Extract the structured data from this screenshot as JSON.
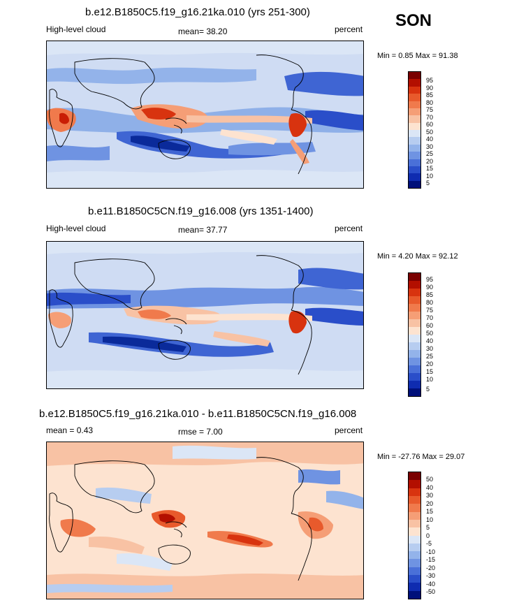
{
  "season": "SON",
  "panels": [
    {
      "title": "b.e12.B1850C5.f19_g16.21ka.010 (yrs 251-300)",
      "left_label": "High-level cloud",
      "center_label": "mean=  38.20",
      "right_label": "percent",
      "minmax": "Min =   0.85 Max =  91.38",
      "colorbar_labels": [
        "95",
        "90",
        "85",
        "80",
        "75",
        "70",
        "60",
        "50",
        "40",
        "30",
        "25",
        "20",
        "15",
        "10",
        "5"
      ],
      "colorbar_colors": [
        "#7a0000",
        "#b30f00",
        "#d8330f",
        "#e85a2c",
        "#f07a4c",
        "#f59e76",
        "#f8c2a4",
        "#fde3d0",
        "#dbe6f6",
        "#b7cdf0",
        "#93b3ea",
        "#6f93e2",
        "#4a70d8",
        "#2a4ec9",
        "#0f2cb0",
        "#00107a"
      ]
    },
    {
      "title": "b.e11.B1850C5CN.f19_g16.008 (yrs 1351-1400)",
      "left_label": "High-level cloud",
      "center_label": "mean=  37.77",
      "right_label": "percent",
      "minmax": "Min =   4.20 Max =  92.12",
      "colorbar_labels": [
        "95",
        "90",
        "85",
        "80",
        "75",
        "70",
        "60",
        "50",
        "40",
        "30",
        "25",
        "20",
        "15",
        "10",
        "5"
      ],
      "colorbar_colors": [
        "#7a0000",
        "#b30f00",
        "#d8330f",
        "#e85a2c",
        "#f07a4c",
        "#f59e76",
        "#f8c2a4",
        "#fde3d0",
        "#dbe6f6",
        "#b7cdf0",
        "#93b3ea",
        "#6f93e2",
        "#4a70d8",
        "#2a4ec9",
        "#0f2cb0",
        "#00107a"
      ]
    },
    {
      "title": "b.e12.B1850C5.f19_g16.21ka.010 - b.e11.B1850C5CN.f19_g16.008",
      "left_label": "mean =   0.43",
      "center_label": "rmse =   7.00",
      "right_label": "percent",
      "minmax": "Min = -27.76 Max =  29.07",
      "colorbar_labels": [
        "50",
        "40",
        "30",
        "20",
        "15",
        "10",
        "5",
        "0",
        "-5",
        "-10",
        "-15",
        "-20",
        "-30",
        "-40",
        "-50"
      ],
      "colorbar_colors": [
        "#7a0000",
        "#b30f00",
        "#d8330f",
        "#e85a2c",
        "#f07a4c",
        "#f59e76",
        "#f8c2a4",
        "#fde3d0",
        "#dbe6f6",
        "#b7cdf0",
        "#93b3ea",
        "#6f93e2",
        "#4a70d8",
        "#2a4ec9",
        "#0f2cb0",
        "#00107a"
      ]
    }
  ]
}
